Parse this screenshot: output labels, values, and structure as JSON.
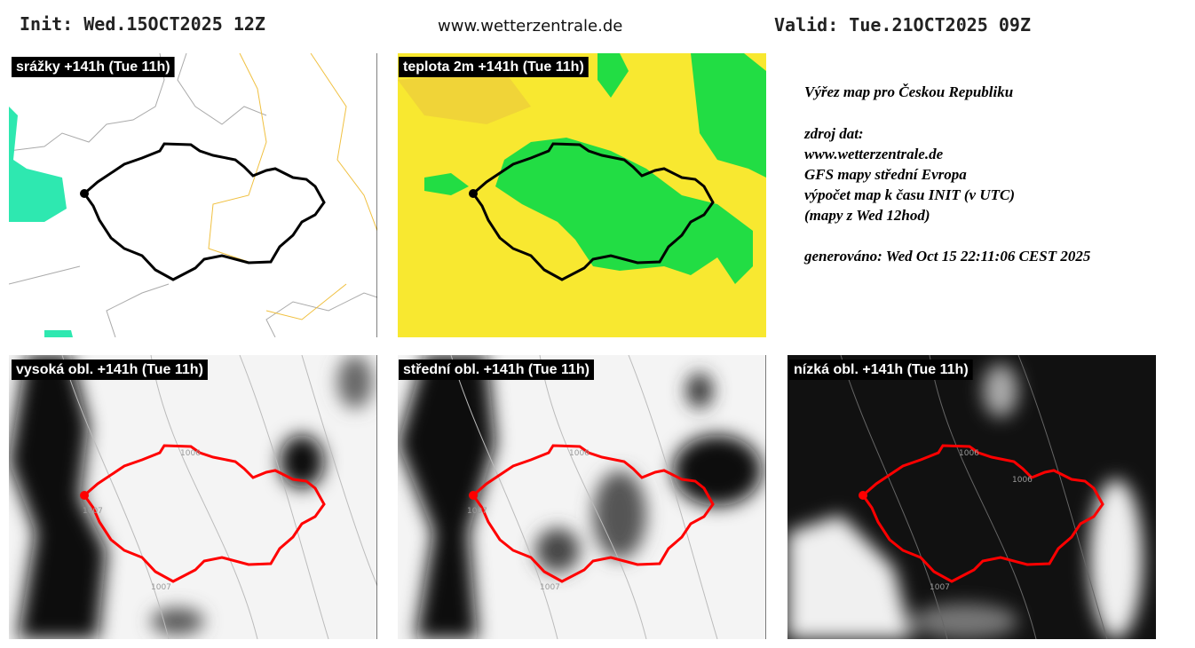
{
  "header": {
    "init": "Init: Wed.15OCT2025 12Z",
    "site": "www.wetterzentrale.de",
    "valid": "Valid: Tue.21OCT2025 09Z"
  },
  "panels": [
    {
      "label": "srážky +141h (Tue 11h)"
    },
    {
      "label": "teplota 2m +141h (Tue 11h)"
    },
    {
      "label": "vysoká obl. +141h (Tue 11h)",
      "isobar_labels": [
        "1006",
        "1007",
        "1007"
      ]
    },
    {
      "label": "střední obl. +141h (Tue 11h)",
      "isobar_labels": [
        "1006",
        "1007",
        "1007"
      ]
    },
    {
      "label": "nízká obl. +141h (Tue 11h)",
      "isobar_labels": [
        "1006",
        "1006",
        "1007"
      ]
    }
  ],
  "info": {
    "lines": [
      "Výřez map pro Českou Republiku",
      "zdroj dat:",
      "www.wetterzentrale.de",
      "GFS mapy střední Evropa",
      "výpočet map k času INIT (v UTC)",
      "(mapy z Wed 12hod)",
      "generováno: Wed Oct 15 22:11:06 CEST 2025"
    ]
  }
}
